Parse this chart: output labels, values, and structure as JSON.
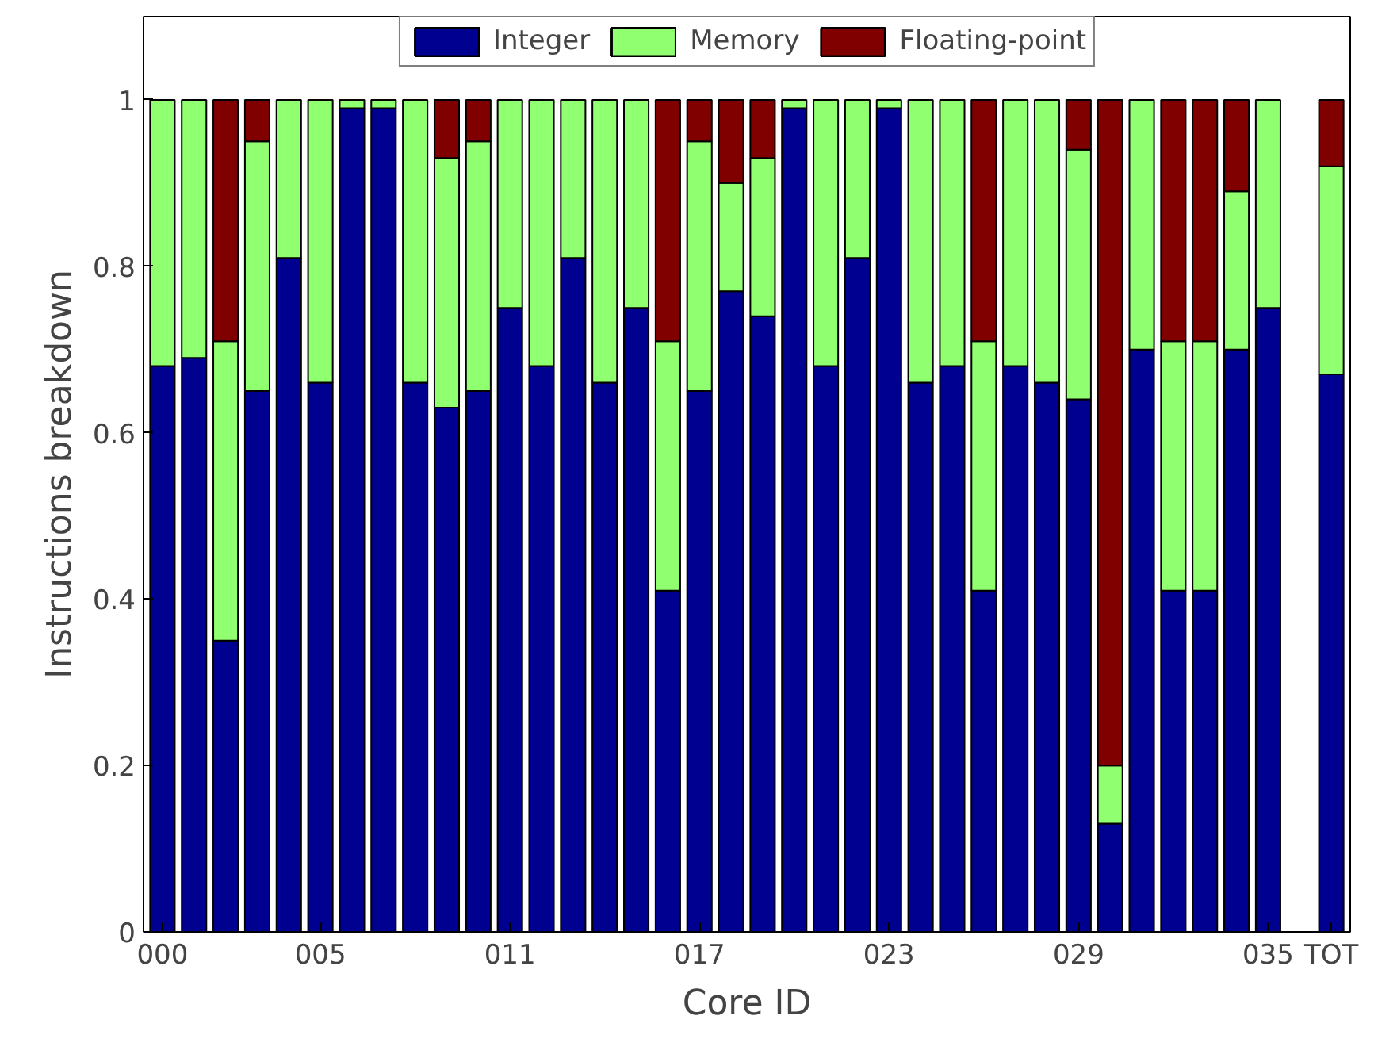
{
  "chart_data": {
    "type": "bar",
    "stacked": true,
    "xlabel": "Core ID",
    "ylabel": "Instructions breakdown",
    "categories": [
      "000",
      null,
      null,
      null,
      null,
      "005",
      null,
      null,
      null,
      null,
      null,
      "011",
      null,
      null,
      null,
      null,
      null,
      "017",
      null,
      null,
      null,
      null,
      null,
      "023",
      null,
      null,
      null,
      null,
      null,
      "029",
      null,
      null,
      null,
      null,
      null,
      "035",
      null,
      "TOT"
    ],
    "series": [
      {
        "name": "Integer",
        "color": "#000090",
        "values": [
          0.68,
          0.69,
          0.35,
          0.65,
          0.81,
          0.66,
          0.99,
          0.99,
          0.66,
          0.63,
          0.65,
          0.75,
          0.68,
          0.81,
          0.66,
          0.75,
          0.41,
          0.65,
          0.77,
          0.74,
          0.99,
          0.68,
          0.81,
          0.99,
          0.66,
          0.68,
          0.41,
          0.68,
          0.66,
          0.64,
          0.13,
          0.7,
          0.41,
          0.41,
          0.7,
          0.75,
          null,
          0.67
        ]
      },
      {
        "name": "Memory",
        "color": "#90ff70",
        "values": [
          0.32,
          0.31,
          0.36,
          0.3,
          0.19,
          0.34,
          0.01,
          0.01,
          0.34,
          0.3,
          0.3,
          0.25,
          0.32,
          0.19,
          0.34,
          0.25,
          0.3,
          0.3,
          0.13,
          0.19,
          0.01,
          0.32,
          0.19,
          0.01,
          0.34,
          0.32,
          0.3,
          0.32,
          0.34,
          0.3,
          0.07,
          0.3,
          0.3,
          0.3,
          0.19,
          0.25,
          null,
          0.25
        ]
      },
      {
        "name": "Floating-point",
        "color": "#800000",
        "values": [
          0,
          0,
          0.29,
          0.05,
          0,
          0,
          0,
          0,
          0,
          0.07,
          0.05,
          0,
          0,
          0,
          0,
          0,
          0.29,
          0.05,
          0.1,
          0.07,
          0,
          0,
          0,
          0,
          0,
          0,
          0.29,
          0,
          0,
          0.06,
          0.8,
          0,
          0.29,
          0.29,
          0.11,
          0,
          null,
          0.08
        ]
      }
    ],
    "ylim": [
      0,
      1.1
    ],
    "yticks": [
      0,
      0.2,
      0.4,
      0.6,
      0.8,
      1
    ],
    "grid": false,
    "legend": "top"
  }
}
